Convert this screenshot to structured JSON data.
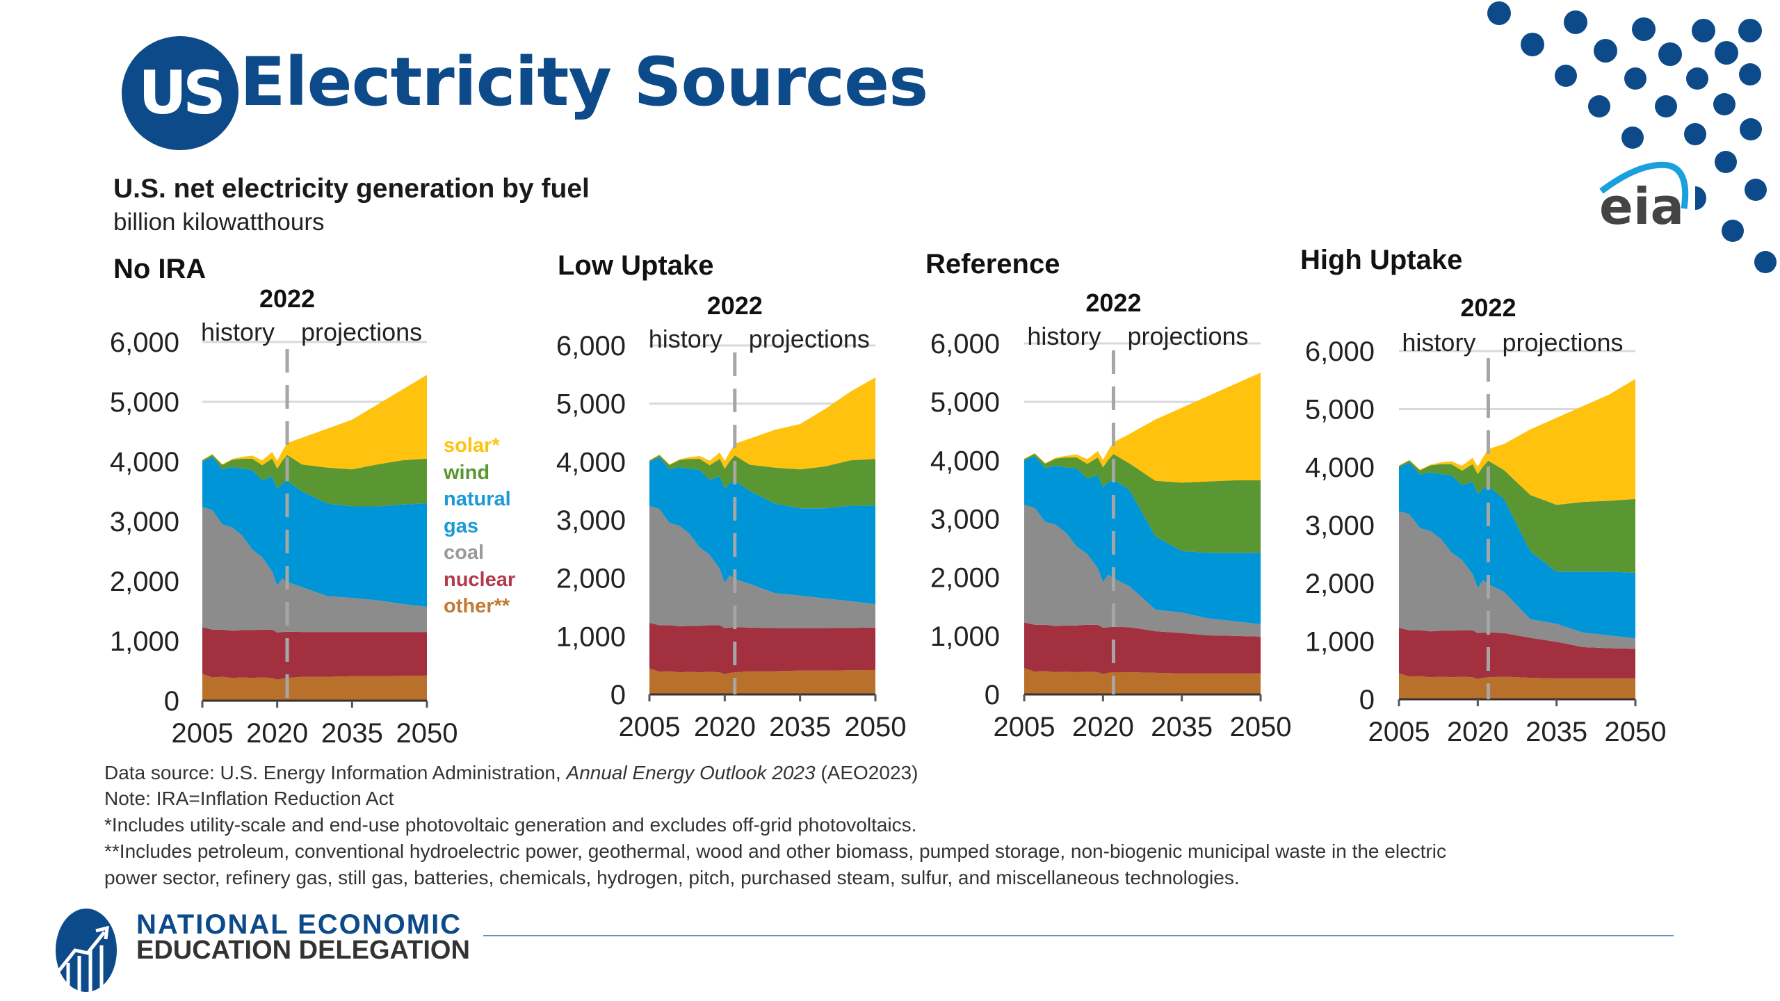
{
  "header": {
    "badge": "US",
    "title": "Electricity Sources"
  },
  "chart_header": {
    "title": "U.S. net electricity generation by fuel",
    "units": "billion kilowatthours"
  },
  "logos": {
    "eia": "eia",
    "need_line1": "NATIONAL ECONOMIC",
    "need_line2": "EDUCATION DELEGATION"
  },
  "footnotes": {
    "source_prefix": "Data source: U.S. Energy Information Administration, ",
    "source_italic": "Annual Energy Outlook 2023",
    "source_suffix": " (AEO2023)",
    "note": "Note: IRA=Inflation Reduction Act",
    "solar_note": "*Includes utility-scale and end-use photovoltaic generation and excludes off-grid photovoltaics.",
    "other_note_1": "**Includes petroleum, conventional hydroelectric power, geothermal, wood and other biomass, pumped storage, non-biogenic municipal waste in the electric",
    "other_note_2": "power sector, refinery gas, still gas, batteries, chemicals, hydrogen, pitch, purchased steam, sulfur, and miscellaneous technologies."
  },
  "colors": {
    "brand_blue": "#0d4a8a",
    "other": "#b8702a",
    "nuclear": "#a3303f",
    "coal": "#8c8c8c",
    "natural_gas": "#0095d6",
    "wind": "#5a9632",
    "solar": "#ffc20e"
  },
  "chart_data": [
    {
      "type": "area",
      "stacked": true,
      "title": "No IRA",
      "xlabel": "",
      "ylabel": "billion kilowatthours",
      "ylim": [
        0,
        6000
      ],
      "xlim": [
        2005,
        2050
      ],
      "x_ticks": [
        "2005",
        "2020",
        "2035",
        "2050"
      ],
      "y_ticks": [
        "0",
        "1,000",
        "2,000",
        "3,000",
        "4,000",
        "5,000",
        "6,000"
      ],
      "gridlines": [
        5000,
        6000
      ],
      "divider": {
        "year": 2022,
        "label": "2022",
        "left_label": "history",
        "right_label": "projections"
      },
      "legend": {
        "placement": "right",
        "entries": [
          "solar*",
          "wind",
          "natural gas",
          "coal",
          "nuclear",
          "other**"
        ]
      },
      "x": [
        2005,
        2007,
        2009,
        2011,
        2013,
        2015,
        2017,
        2019,
        2020,
        2021,
        2022,
        2025,
        2030,
        2035,
        2040,
        2045,
        2050
      ],
      "series": [
        {
          "name": "other**",
          "key": "other",
          "values": [
            450,
            390,
            400,
            380,
            390,
            380,
            390,
            380,
            350,
            370,
            380,
            400,
            400,
            410,
            410,
            415,
            420
          ]
        },
        {
          "name": "nuclear",
          "key": "nuclear",
          "values": [
            780,
            800,
            790,
            790,
            790,
            800,
            800,
            810,
            790,
            780,
            775,
            750,
            750,
            740,
            740,
            735,
            730
          ]
        },
        {
          "name": "coal",
          "key": "coal",
          "values": [
            2010,
            2000,
            1760,
            1730,
            1580,
            1350,
            1210,
            970,
            780,
            900,
            830,
            750,
            600,
            570,
            530,
            470,
            420
          ]
        },
        {
          "name": "natural gas",
          "key": "natural_gas",
          "values": [
            760,
            890,
            920,
            1010,
            1120,
            1330,
            1290,
            1590,
            1620,
            1580,
            1690,
            1600,
            1550,
            1530,
            1570,
            1660,
            1730
          ]
        },
        {
          "name": "wind",
          "key": "wind",
          "values": [
            20,
            35,
            75,
            120,
            170,
            190,
            250,
            300,
            340,
            380,
            435,
            450,
            600,
            620,
            700,
            740,
            750
          ]
        },
        {
          "name": "solar*",
          "key": "solar",
          "values": [
            10,
            10,
            10,
            15,
            30,
            50,
            80,
            110,
            130,
            160,
            200,
            450,
            650,
            830,
            1000,
            1180,
            1400
          ]
        }
      ]
    },
    {
      "type": "area",
      "stacked": true,
      "title": "Low Uptake",
      "xlabel": "",
      "ylabel": "billion kilowatthours",
      "ylim": [
        0,
        6000
      ],
      "xlim": [
        2005,
        2050
      ],
      "x_ticks": [
        "2005",
        "2020",
        "2035",
        "2050"
      ],
      "y_ticks": [
        "0",
        "1,000",
        "2,000",
        "3,000",
        "4,000",
        "5,000",
        "6,000"
      ],
      "gridlines": [
        5000,
        6000
      ],
      "divider": {
        "year": 2022,
        "label": "2022",
        "left_label": "history",
        "right_label": "projections"
      },
      "x": [
        2005,
        2007,
        2009,
        2011,
        2013,
        2015,
        2017,
        2019,
        2020,
        2021,
        2022,
        2025,
        2030,
        2035,
        2040,
        2045,
        2050
      ],
      "series": [
        {
          "name": "other**",
          "key": "other",
          "values": [
            450,
            390,
            400,
            380,
            390,
            380,
            390,
            380,
            350,
            370,
            380,
            400,
            400,
            410,
            410,
            415,
            420
          ]
        },
        {
          "name": "nuclear",
          "key": "nuclear",
          "values": [
            780,
            800,
            790,
            790,
            790,
            800,
            800,
            810,
            790,
            780,
            775,
            750,
            740,
            730,
            730,
            730,
            730
          ]
        },
        {
          "name": "coal",
          "key": "coal",
          "values": [
            2010,
            2000,
            1760,
            1730,
            1580,
            1350,
            1210,
            970,
            780,
            900,
            830,
            750,
            600,
            560,
            510,
            460,
            400
          ]
        },
        {
          "name": "natural gas",
          "key": "natural_gas",
          "values": [
            760,
            890,
            920,
            1010,
            1120,
            1330,
            1290,
            1590,
            1620,
            1580,
            1690,
            1600,
            1540,
            1500,
            1550,
            1640,
            1700
          ]
        },
        {
          "name": "wind",
          "key": "wind",
          "values": [
            20,
            35,
            75,
            120,
            170,
            190,
            250,
            300,
            340,
            380,
            435,
            450,
            620,
            670,
            720,
            780,
            800
          ]
        },
        {
          "name": "solar*",
          "key": "solar",
          "values": [
            10,
            10,
            10,
            15,
            30,
            50,
            80,
            110,
            130,
            160,
            200,
            450,
            650,
            780,
            990,
            1180,
            1400
          ]
        }
      ]
    },
    {
      "type": "area",
      "stacked": true,
      "title": "Reference",
      "xlabel": "",
      "ylabel": "billion kilowatthours",
      "ylim": [
        0,
        6000
      ],
      "xlim": [
        2005,
        2050
      ],
      "x_ticks": [
        "2005",
        "2020",
        "2035",
        "2050"
      ],
      "y_ticks": [
        "0",
        "1,000",
        "2,000",
        "3,000",
        "4,000",
        "5,000",
        "6,000"
      ],
      "gridlines": [
        5000,
        6000
      ],
      "divider": {
        "year": 2022,
        "label": "2022",
        "left_label": "history",
        "right_label": "projections"
      },
      "x": [
        2005,
        2007,
        2009,
        2011,
        2013,
        2015,
        2017,
        2019,
        2020,
        2021,
        2022,
        2025,
        2030,
        2035,
        2040,
        2045,
        2050
      ],
      "series": [
        {
          "name": "other**",
          "key": "other",
          "values": [
            450,
            390,
            400,
            380,
            390,
            380,
            390,
            380,
            350,
            370,
            380,
            380,
            370,
            360,
            360,
            360,
            360
          ]
        },
        {
          "name": "nuclear",
          "key": "nuclear",
          "values": [
            780,
            800,
            790,
            790,
            790,
            800,
            800,
            810,
            790,
            780,
            775,
            770,
            710,
            690,
            650,
            640,
            630
          ]
        },
        {
          "name": "coal",
          "key": "coal",
          "values": [
            2010,
            2000,
            1760,
            1730,
            1580,
            1350,
            1210,
            970,
            780,
            900,
            830,
            700,
            370,
            350,
            290,
            250,
            210
          ]
        },
        {
          "name": "natural gas",
          "key": "natural_gas",
          "values": [
            760,
            890,
            920,
            1010,
            1120,
            1330,
            1290,
            1590,
            1620,
            1580,
            1690,
            1650,
            1250,
            1050,
            1120,
            1170,
            1220
          ]
        },
        {
          "name": "wind",
          "key": "wind",
          "values": [
            20,
            35,
            75,
            120,
            170,
            190,
            250,
            300,
            340,
            380,
            435,
            450,
            950,
            1170,
            1220,
            1240,
            1240
          ]
        },
        {
          "name": "solar*",
          "key": "solar",
          "values": [
            10,
            10,
            10,
            15,
            30,
            50,
            80,
            110,
            130,
            160,
            200,
            500,
            1050,
            1280,
            1460,
            1640,
            1840
          ]
        }
      ]
    },
    {
      "type": "area",
      "stacked": true,
      "title": "High Uptake",
      "xlabel": "",
      "ylabel": "billion kilowatthours",
      "ylim": [
        0,
        6000
      ],
      "xlim": [
        2005,
        2050
      ],
      "x_ticks": [
        "2005",
        "2020",
        "2035",
        "2050"
      ],
      "y_ticks": [
        "0",
        "1,000",
        "2,000",
        "3,000",
        "4,000",
        "5,000",
        "6,000"
      ],
      "gridlines": [
        5000,
        6000
      ],
      "divider": {
        "year": 2022,
        "label": "2022",
        "left_label": "history",
        "right_label": "projections"
      },
      "x": [
        2005,
        2007,
        2009,
        2011,
        2013,
        2015,
        2017,
        2019,
        2020,
        2021,
        2022,
        2025,
        2030,
        2035,
        2040,
        2045,
        2050
      ],
      "series": [
        {
          "name": "other**",
          "key": "other",
          "values": [
            450,
            390,
            400,
            380,
            390,
            380,
            390,
            380,
            350,
            370,
            380,
            390,
            370,
            360,
            360,
            360,
            360
          ]
        },
        {
          "name": "nuclear",
          "key": "nuclear",
          "values": [
            780,
            800,
            790,
            790,
            790,
            800,
            800,
            810,
            790,
            780,
            775,
            750,
            690,
            630,
            540,
            520,
            510
          ]
        },
        {
          "name": "coal",
          "key": "coal",
          "values": [
            2010,
            2000,
            1760,
            1730,
            1580,
            1350,
            1210,
            970,
            780,
            900,
            830,
            710,
            320,
            310,
            250,
            220,
            180
          ]
        },
        {
          "name": "natural gas",
          "key": "natural_gas",
          "values": [
            760,
            890,
            920,
            1010,
            1120,
            1330,
            1290,
            1590,
            1620,
            1580,
            1690,
            1600,
            1170,
            900,
            1050,
            1100,
            1130
          ]
        },
        {
          "name": "wind",
          "key": "wind",
          "values": [
            20,
            35,
            75,
            120,
            170,
            190,
            250,
            300,
            340,
            380,
            435,
            500,
            970,
            1150,
            1200,
            1220,
            1270
          ]
        },
        {
          "name": "solar*",
          "key": "solar",
          "values": [
            10,
            10,
            10,
            15,
            30,
            50,
            80,
            110,
            130,
            160,
            200,
            450,
            1130,
            1500,
            1650,
            1830,
            2070
          ]
        }
      ]
    }
  ]
}
